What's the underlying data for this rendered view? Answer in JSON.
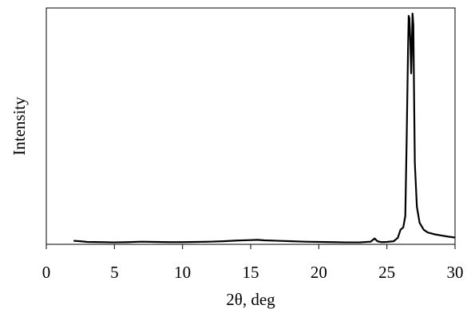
{
  "chart_data": {
    "type": "line",
    "title": "",
    "xlabel": "2θ, deg",
    "ylabel": "Intensity",
    "xlim": [
      0,
      30
    ],
    "ylim": [
      0,
      100
    ],
    "xticks": [
      "0",
      "5",
      "10",
      "15",
      "20",
      "25",
      "30"
    ],
    "yticks": [],
    "grid": false,
    "legend": "none",
    "series_color": "#000000",
    "series": [
      {
        "x": [
          2.0,
          2.5,
          3.0,
          4.0,
          5.0,
          6.0,
          7.0,
          8.0,
          9.0,
          10.0,
          11.0,
          12.0,
          13.0,
          14.0,
          15.0,
          15.5,
          16.0,
          17.0,
          18.0,
          19.0,
          20.0,
          21.0,
          22.0,
          23.0,
          23.8,
          24.1,
          24.3,
          24.6,
          25.0,
          25.5,
          25.8,
          26.0,
          26.2,
          26.35,
          26.45,
          26.55,
          26.6,
          26.65,
          26.72,
          26.78,
          26.82,
          26.88,
          26.94,
          26.98,
          27.05,
          27.2,
          27.4,
          27.7,
          28.0,
          28.5,
          29.0,
          29.5,
          30.0
        ],
        "y": [
          1.2,
          1.0,
          0.7,
          0.6,
          0.5,
          0.6,
          0.8,
          0.7,
          0.6,
          0.6,
          0.7,
          0.8,
          1.0,
          1.3,
          1.5,
          1.6,
          1.4,
          1.2,
          1.0,
          0.8,
          0.7,
          0.6,
          0.5,
          0.5,
          0.8,
          2.2,
          1.0,
          0.6,
          0.7,
          1.0,
          2.5,
          6.0,
          7.0,
          12.0,
          45.0,
          84.0,
          99.0,
          98.0,
          88.0,
          74.0,
          82.0,
          100.0,
          95.0,
          72.0,
          35.0,
          16.0,
          9.0,
          6.0,
          4.8,
          4.0,
          3.5,
          3.0,
          2.6
        ]
      }
    ]
  }
}
